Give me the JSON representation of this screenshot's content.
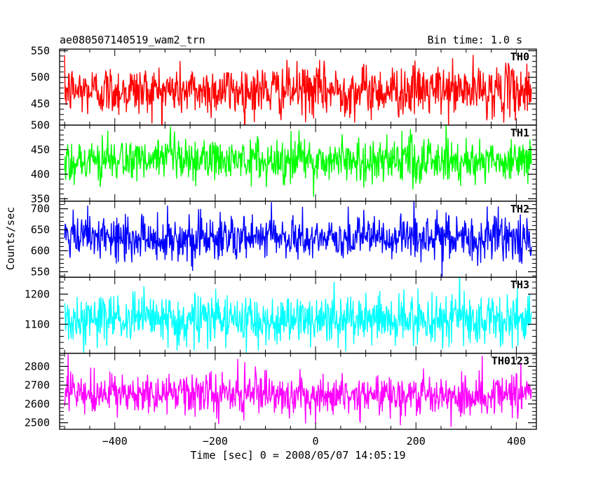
{
  "header": {
    "title": "ae080507140519_wam2_trn",
    "bin_time": "Bin time: 1.0 s"
  },
  "axes": {
    "ylabel": "Counts/sec",
    "xlabel": "Time [sec] 0 = 2008/05/07 14:05:19",
    "xlim": [
      -510,
      440
    ],
    "xticks": [
      -400,
      -200,
      0,
      200,
      400
    ]
  },
  "chart_data": {
    "type": "line",
    "x_range": [
      -500,
      430
    ],
    "series": [
      {
        "name": "TH0",
        "color": "#ff0000",
        "mean": 475,
        "spread": 24,
        "ylim": [
          410,
          553
        ],
        "yticks": [
          450,
          500,
          550
        ]
      },
      {
        "name": "TH1",
        "color": "#00ff00",
        "mean": 428,
        "spread": 23,
        "ylim": [
          345,
          500
        ],
        "yticks": [
          350,
          400,
          450,
          500
        ]
      },
      {
        "name": "TH2",
        "color": "#0000ff",
        "mean": 630,
        "spread": 27,
        "ylim": [
          537,
          718
        ],
        "yticks": [
          550,
          600,
          650,
          700
        ]
      },
      {
        "name": "TH3",
        "color": "#00ffff",
        "mean": 1115,
        "spread": 42,
        "ylim": [
          1004,
          1256
        ],
        "yticks": [
          1100,
          1200
        ]
      },
      {
        "name": "TH0123",
        "color": "#ff00ff",
        "mean": 2650,
        "spread": 55,
        "ylim": [
          2465,
          2870
        ],
        "yticks": [
          2500,
          2600,
          2700,
          2800
        ]
      }
    ]
  }
}
